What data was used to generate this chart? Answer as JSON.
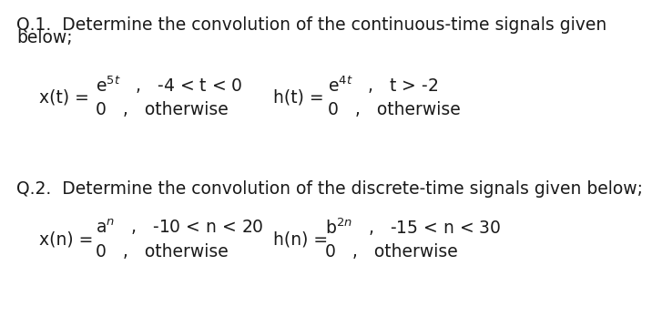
{
  "background_color": "#ffffff",
  "q1_title_line1": "Q.1.  Determine the convolution of the continuous-time signals given",
  "q1_title_line2": "below;",
  "q2_title": "Q.2.  Determine the convolution of the discrete-time signals given below;",
  "font_color": "#1a1a1a",
  "title_fontsize": 13.5,
  "label_fontsize": 13.5,
  "expr_fontsize": 13.5
}
